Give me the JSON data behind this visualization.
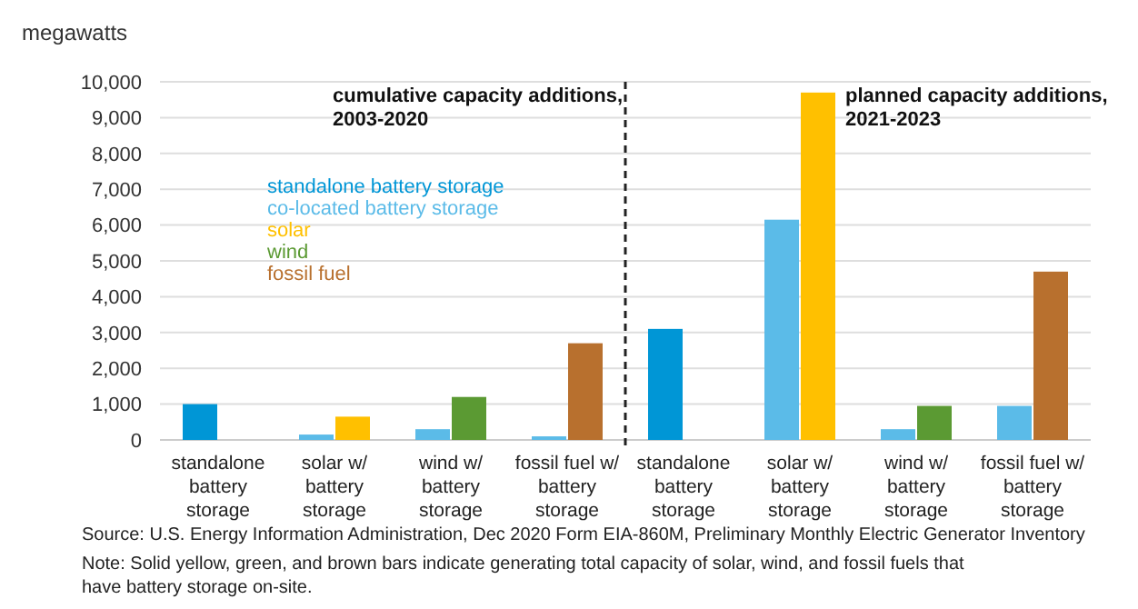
{
  "chart_data": {
    "type": "bar",
    "ylabel": "megawatts",
    "categories": [
      "standalone battery storage",
      "solar w/ battery storage",
      "wind w/ battery storage",
      "fossil fuel w/ battery storage",
      "standalone battery storage",
      "solar w/ battery storage",
      "wind w/ battery storage",
      "fossil fuel w/ battery storage"
    ],
    "series": [
      {
        "name": "standalone battery storage",
        "color": "#0096d6",
        "values": [
          1000,
          null,
          null,
          null,
          3100,
          null,
          null,
          null
        ]
      },
      {
        "name": "co-located battery storage",
        "color": "#5bbbe8",
        "values": [
          null,
          150,
          300,
          100,
          null,
          6150,
          300,
          950
        ]
      },
      {
        "name": "solar",
        "color": "#ffc000",
        "values": [
          null,
          650,
          null,
          null,
          null,
          9700,
          null,
          null
        ]
      },
      {
        "name": "wind",
        "color": "#5b9a33",
        "values": [
          null,
          null,
          1200,
          null,
          null,
          null,
          950,
          null
        ]
      },
      {
        "name": "fossil fuel",
        "color": "#b8702e",
        "values": [
          null,
          null,
          null,
          2700,
          null,
          null,
          null,
          4700
        ]
      }
    ],
    "ylim": [
      0,
      10000
    ],
    "yticks": [
      {
        "value": 0,
        "label": "0"
      },
      {
        "value": 1000,
        "label": "1,000"
      },
      {
        "value": 2000,
        "label": "2,000"
      },
      {
        "value": 3000,
        "label": "3,000"
      },
      {
        "value": 4000,
        "label": "4,000"
      },
      {
        "value": 5000,
        "label": "5,000"
      },
      {
        "value": 6000,
        "label": "6,000"
      },
      {
        "value": 7000,
        "label": "7,000"
      },
      {
        "value": 8000,
        "label": "8,000"
      },
      {
        "value": 9000,
        "label": "9,000"
      },
      {
        "value": 10000,
        "label": "10,000"
      }
    ],
    "grid": "y",
    "legend": "top left",
    "annotations": [
      "cumulative capacity additions, 2003-2020",
      "planned capacity additions, 2021-2023",
      "Source: U.S. Energy Information Administration, Dec 2020 Form EIA-860M, Preliminary Monthly Electric Generator Inventory",
      "Note: Solid yellow, green, and brown bars indicate generating total capacity of solar, wind, and fossil fuels that have battery storage on-site."
    ]
  }
}
